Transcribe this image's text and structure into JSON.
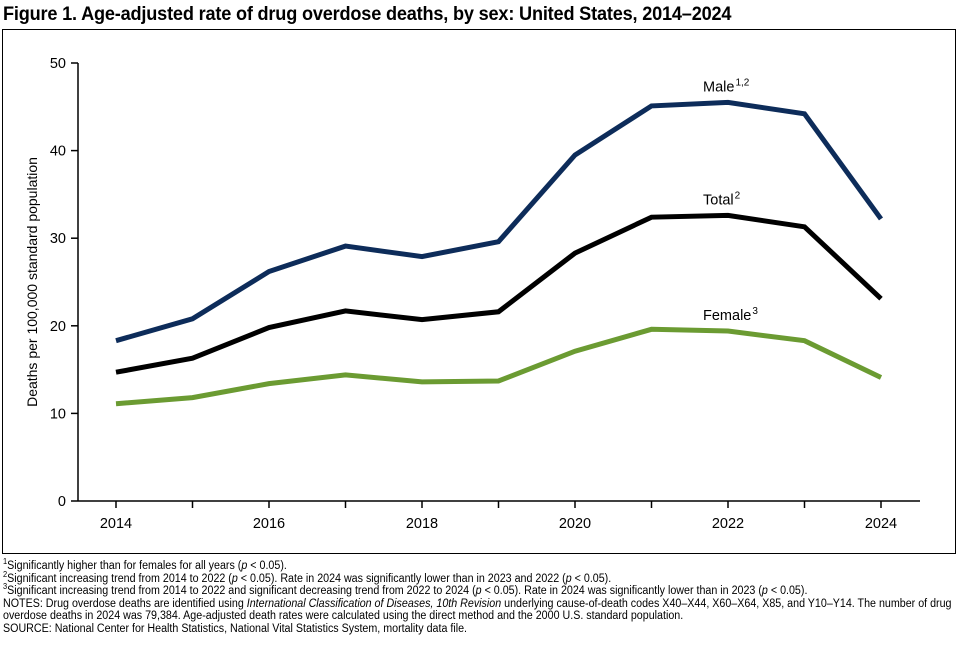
{
  "title": "Figure 1. Age-adjusted rate of drug overdose deaths, by sex: United States, 2014–2024",
  "chart_data": {
    "type": "line",
    "title": "Figure 1. Age-adjusted rate of drug overdose deaths, by sex: United States, 2014–2024",
    "xlabel": "",
    "ylabel": "Deaths per 100,000 standard population",
    "x": [
      2014,
      2015,
      2016,
      2017,
      2018,
      2019,
      2020,
      2021,
      2022,
      2023,
      2024
    ],
    "x_tick_labels": [
      "2014",
      "2016",
      "2018",
      "2020",
      "2022",
      "2024"
    ],
    "y_tick_labels": [
      "0",
      "10",
      "20",
      "30",
      "40",
      "50"
    ],
    "ylim": [
      0,
      50
    ],
    "grid": false,
    "legend": "inline labels",
    "series": [
      {
        "name": "Male",
        "sup": "1,2",
        "color": "#0d2c5a",
        "values": [
          18.3,
          20.8,
          26.2,
          29.1,
          27.9,
          29.6,
          39.5,
          45.1,
          45.5,
          44.2,
          32.2
        ]
      },
      {
        "name": "Total",
        "sup": "2",
        "color": "#000000",
        "values": [
          14.7,
          16.3,
          19.8,
          21.7,
          20.7,
          21.6,
          28.3,
          32.4,
          32.6,
          31.3,
          23.1
        ]
      },
      {
        "name": "Female",
        "sup": "3",
        "color": "#6b9b32",
        "values": [
          11.1,
          11.8,
          13.4,
          14.4,
          13.6,
          13.7,
          17.1,
          19.6,
          19.4,
          18.3,
          14.1
        ]
      }
    ]
  },
  "notes": [
    [
      {
        "sup": "1"
      },
      {
        "t": "Significantly higher than for females for all years ("
      },
      {
        "i": "p"
      },
      {
        "t": " < 0.05)."
      }
    ],
    [
      {
        "sup": "2"
      },
      {
        "t": "Significant increasing trend from 2014 to 2022 ("
      },
      {
        "i": "p"
      },
      {
        "t": " < 0.05). Rate in 2024 was significantly lower than in 2023 and 2022 ("
      },
      {
        "i": "p"
      },
      {
        "t": " < 0.05)."
      }
    ],
    [
      {
        "sup": "3"
      },
      {
        "t": "Significant increasing trend from 2014 to 2022 and significant decreasing trend from 2022 to 2024 ("
      },
      {
        "i": "p"
      },
      {
        "t": " < 0.05). Rate in 2024 was significantly lower than in 2023 ("
      },
      {
        "i": "p"
      },
      {
        "t": " < 0.05)."
      }
    ],
    [
      {
        "t": "NOTES: Drug overdose deaths are identified using "
      },
      {
        "i": "International Classification of Diseases, 10th Revision"
      },
      {
        "t": " underlying cause-of-death codes X40–X44, X60–X64, X85, and Y10–Y14. The number of drug overdose deaths in 2024 was 79,384. Age-adjusted death rates were calculated using the direct method and the 2000 U.S. standard population."
      }
    ],
    [
      {
        "t": "SOURCE: National Center for Health Statistics, National Vital Statistics System, mortality data file."
      }
    ]
  ]
}
